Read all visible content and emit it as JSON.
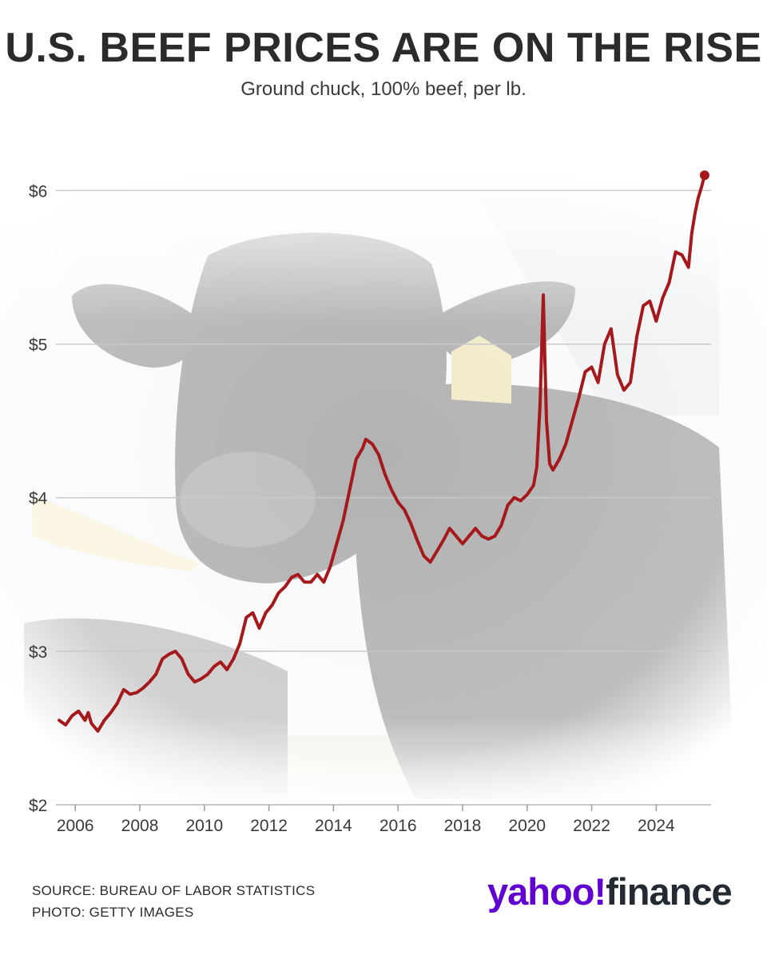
{
  "header": {
    "title": "U.S. BEEF PRICES ARE ON THE RISE",
    "subtitle": "Ground chuck, 100% beef, per lb."
  },
  "footer": {
    "source": "SOURCE: BUREAU OF LABOR STATISTICS",
    "photo": "PHOTO: GETTY IMAGES"
  },
  "logo": {
    "left": "yahoo!",
    "right": "finance",
    "brand_color": "#6001d2",
    "text_color": "#232a31"
  },
  "colors": {
    "line": "#a5191c",
    "grid": "#c9c9c9"
  },
  "chart_data": {
    "type": "line",
    "title": "U.S. BEEF PRICES ARE ON THE RISE",
    "subtitle": "Ground chuck, 100% beef, per lb.",
    "xlabel": "",
    "ylabel": "",
    "xlim": [
      2005.4,
      2025.7
    ],
    "ylim": [
      2,
      6.2
    ],
    "grid": true,
    "y_ticks": [
      2,
      3,
      4,
      5,
      6
    ],
    "y_tick_labels": [
      "$2",
      "$3",
      "$4",
      "$5",
      "$6"
    ],
    "x_ticks": [
      2006,
      2008,
      2010,
      2012,
      2014,
      2016,
      2018,
      2020,
      2022,
      2024
    ],
    "x_tick_labels": [
      "2006",
      "2008",
      "2010",
      "2012",
      "2014",
      "2016",
      "2018",
      "2020",
      "2022",
      "2024"
    ],
    "series": [
      {
        "x": [
          2005.5,
          2005.7,
          2005.9,
          2006.1,
          2006.3,
          2006.4,
          2006.5,
          2006.7,
          2006.9,
          2007.1,
          2007.3,
          2007.5,
          2007.7,
          2007.9,
          2008.1,
          2008.3,
          2008.5,
          2008.7,
          2008.9,
          2009.1,
          2009.3,
          2009.5,
          2009.7,
          2009.9,
          2010.1,
          2010.3,
          2010.5,
          2010.7,
          2010.9,
          2011.1,
          2011.3,
          2011.5,
          2011.7,
          2011.9,
          2012.1,
          2012.3,
          2012.5,
          2012.7,
          2012.9,
          2013.1,
          2013.3,
          2013.5,
          2013.7,
          2013.9,
          2014.1,
          2014.3,
          2014.5,
          2014.7,
          2014.9,
          2015.0,
          2015.2,
          2015.4,
          2015.6,
          2015.8,
          2016.0,
          2016.2,
          2016.4,
          2016.6,
          2016.8,
          2017.0,
          2017.2,
          2017.4,
          2017.6,
          2017.8,
          2018.0,
          2018.2,
          2018.4,
          2018.6,
          2018.8,
          2019.0,
          2019.2,
          2019.4,
          2019.6,
          2019.8,
          2020.0,
          2020.2,
          2020.3,
          2020.4,
          2020.5,
          2020.55,
          2020.6,
          2020.7,
          2020.8,
          2021.0,
          2021.2,
          2021.4,
          2021.6,
          2021.8,
          2022.0,
          2022.2,
          2022.4,
          2022.6,
          2022.8,
          2023.0,
          2023.2,
          2023.4,
          2023.6,
          2023.8,
          2024.0,
          2024.2,
          2024.4,
          2024.6,
          2024.8,
          2025.0,
          2025.1,
          2025.2,
          2025.3,
          2025.4,
          2025.5
        ],
        "y": [
          2.55,
          2.52,
          2.58,
          2.61,
          2.55,
          2.6,
          2.53,
          2.48,
          2.55,
          2.6,
          2.66,
          2.75,
          2.72,
          2.73,
          2.76,
          2.8,
          2.85,
          2.95,
          2.98,
          3.0,
          2.95,
          2.85,
          2.8,
          2.82,
          2.85,
          2.9,
          2.93,
          2.88,
          2.95,
          3.05,
          3.22,
          3.25,
          3.15,
          3.25,
          3.3,
          3.38,
          3.42,
          3.48,
          3.5,
          3.45,
          3.45,
          3.5,
          3.45,
          3.55,
          3.7,
          3.85,
          4.05,
          4.25,
          4.32,
          4.38,
          4.35,
          4.28,
          4.15,
          4.05,
          3.97,
          3.92,
          3.83,
          3.72,
          3.62,
          3.58,
          3.65,
          3.72,
          3.8,
          3.75,
          3.7,
          3.75,
          3.8,
          3.75,
          3.73,
          3.75,
          3.82,
          3.95,
          4.0,
          3.98,
          4.02,
          4.08,
          4.2,
          4.6,
          5.32,
          4.9,
          4.5,
          4.22,
          4.18,
          4.25,
          4.35,
          4.5,
          4.65,
          4.82,
          4.85,
          4.75,
          5.0,
          5.1,
          4.8,
          4.7,
          4.75,
          5.05,
          5.25,
          5.28,
          5.15,
          5.3,
          5.4,
          5.6,
          5.58,
          5.5,
          5.72,
          5.85,
          5.95,
          6.02,
          6.1
        ]
      }
    ]
  }
}
